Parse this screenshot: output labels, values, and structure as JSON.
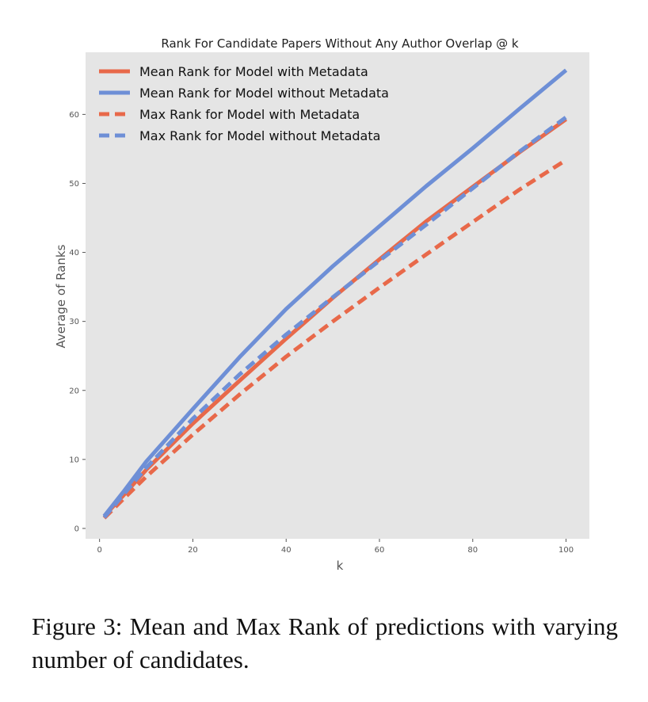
{
  "caption": "Figure 3: Mean and Max Rank of predictions with varying number of candidates.",
  "chart_data": {
    "type": "line",
    "title": "Rank For Candidate Papers Without Any Author Overlap @ k",
    "xlabel": "k",
    "ylabel": "Average of Ranks",
    "xlim": [
      -3,
      105
    ],
    "ylim": [
      -1.5,
      69
    ],
    "xticks": [
      0,
      20,
      40,
      60,
      80,
      100
    ],
    "yticks": [
      0,
      10,
      20,
      30,
      40,
      50,
      60
    ],
    "grid": false,
    "background": "#e5e5e5",
    "legend_position": "top-left",
    "x": [
      1,
      5,
      10,
      20,
      30,
      40,
      50,
      60,
      70,
      80,
      90,
      100
    ],
    "series": [
      {
        "name": "Mean Rank for Model with Metadata",
        "color": "#e8694a",
        "dash": false,
        "values": [
          1.8,
          4.7,
          8.5,
          15.2,
          21.4,
          27.5,
          33.4,
          39.0,
          44.5,
          49.5,
          54.5,
          59.3
        ]
      },
      {
        "name": "Mean Rank for Model without Metadata",
        "color": "#6e8fd6",
        "dash": false,
        "values": [
          1.8,
          5.2,
          9.7,
          17.3,
          24.8,
          31.8,
          38.0,
          43.8,
          49.6,
          55.1,
          60.8,
          66.4
        ]
      },
      {
        "name": "Max Rank for Model with Metadata",
        "color": "#e8694a",
        "dash": true,
        "values": [
          1.5,
          4.2,
          7.5,
          13.6,
          19.4,
          24.9,
          30.0,
          34.9,
          39.7,
          44.4,
          49.1,
          53.4
        ]
      },
      {
        "name": "Max Rank for Model without Metadata",
        "color": "#6e8fd6",
        "dash": true,
        "values": [
          1.6,
          4.8,
          8.8,
          15.9,
          22.3,
          28.1,
          33.5,
          38.8,
          44.0,
          49.3,
          54.6,
          59.6
        ]
      }
    ]
  }
}
